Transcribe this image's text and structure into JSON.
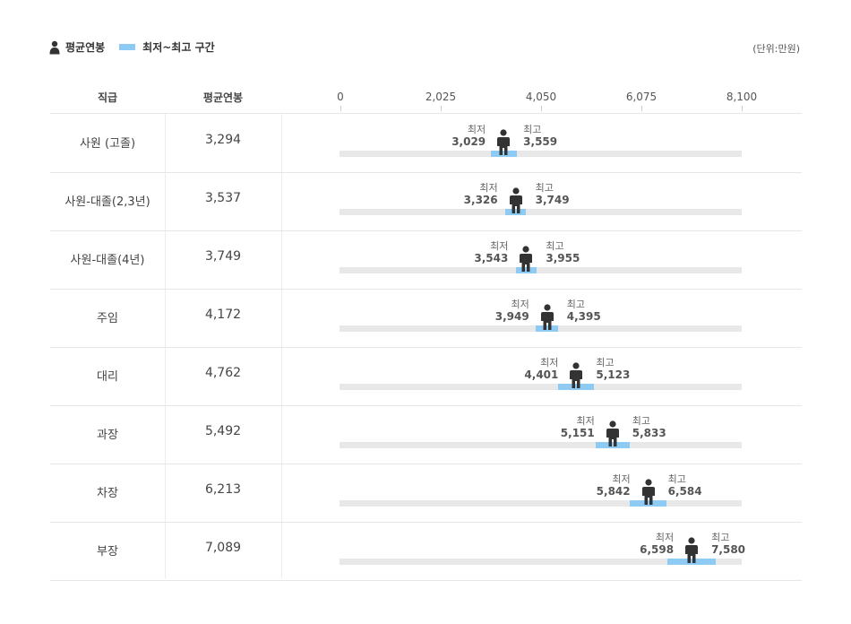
{
  "legend": {
    "avg_label": "평균연봉",
    "range_label": "최저~최고 구간"
  },
  "unit_label": "(단위:만원)",
  "headers": {
    "rank": "직급",
    "avg": "평균연봉"
  },
  "colors": {
    "range": "#8ecbf4",
    "track": "#e8e8e8",
    "person": "#333333"
  },
  "labels": {
    "min": "최저",
    "max": "최고"
  },
  "chart_data": {
    "type": "bar",
    "xlim": [
      0,
      8100
    ],
    "ticks": [
      "0",
      "2,025",
      "4,050",
      "6,075",
      "8,100"
    ],
    "tick_values": [
      0,
      2025,
      4050,
      6075,
      8100
    ],
    "rows": [
      {
        "rank": "사원 (고졸)",
        "avg": 3294,
        "avg_text": "3,294",
        "min": 3029,
        "min_text": "3,029",
        "max": 3559,
        "max_text": "3,559"
      },
      {
        "rank": "사원-대졸(2,3년)",
        "avg": 3537,
        "avg_text": "3,537",
        "min": 3326,
        "min_text": "3,326",
        "max": 3749,
        "max_text": "3,749"
      },
      {
        "rank": "사원-대졸(4년)",
        "avg": 3749,
        "avg_text": "3,749",
        "min": 3543,
        "min_text": "3,543",
        "max": 3955,
        "max_text": "3,955"
      },
      {
        "rank": "주임",
        "avg": 4172,
        "avg_text": "4,172",
        "min": 3949,
        "min_text": "3,949",
        "max": 4395,
        "max_text": "4,395"
      },
      {
        "rank": "대리",
        "avg": 4762,
        "avg_text": "4,762",
        "min": 4401,
        "min_text": "4,401",
        "max": 5123,
        "max_text": "5,123"
      },
      {
        "rank": "과장",
        "avg": 5492,
        "avg_text": "5,492",
        "min": 5151,
        "min_text": "5,151",
        "max": 5833,
        "max_text": "5,833"
      },
      {
        "rank": "차장",
        "avg": 6213,
        "avg_text": "6,213",
        "min": 5842,
        "min_text": "5,842",
        "max": 6584,
        "max_text": "6,584"
      },
      {
        "rank": "부장",
        "avg": 7089,
        "avg_text": "7,089",
        "min": 6598,
        "min_text": "6,598",
        "max": 7580,
        "max_text": "7,580"
      }
    ]
  }
}
